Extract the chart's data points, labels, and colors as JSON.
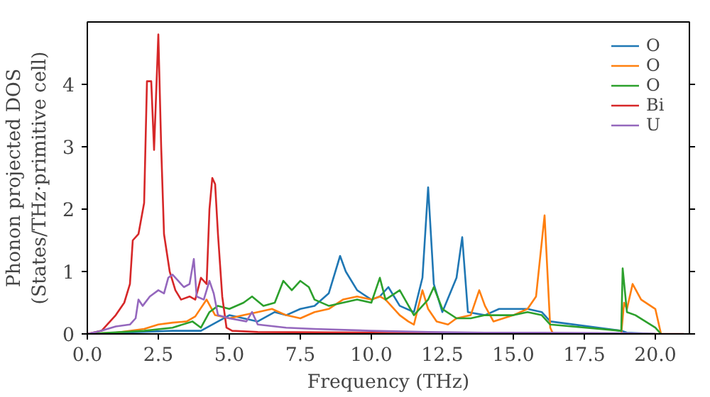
{
  "chart_data": {
    "type": "line",
    "xlabel": "Frequency (THz)",
    "ylabel": "Phonon projected DOS\n(States/THz·primitive cell)",
    "xlim": [
      0,
      21.2
    ],
    "ylim": [
      0,
      5
    ],
    "xticks": [
      {
        "value": 0,
        "label": "0.0"
      },
      {
        "value": 2.5,
        "label": "2.5"
      },
      {
        "value": 5,
        "label": "5.0"
      },
      {
        "value": 7.5,
        "label": "7.5"
      },
      {
        "value": 10,
        "label": "10.0"
      },
      {
        "value": 12.5,
        "label": "12.5"
      },
      {
        "value": 15,
        "label": "15.0"
      },
      {
        "value": 17.5,
        "label": "17.5"
      },
      {
        "value": 20,
        "label": "20.0"
      }
    ],
    "yticks": [
      0,
      1,
      2,
      3,
      4
    ],
    "grid": false,
    "legend": "top right",
    "marker": "none",
    "line_style": "solid",
    "series": [
      {
        "name": "O",
        "color": "#1f77b4",
        "x": [
          0,
          3,
          4,
          5,
          5.5,
          6,
          6.6,
          7,
          7.5,
          8,
          8.5,
          8.9,
          9.1,
          9.5,
          10,
          10.3,
          10.6,
          11,
          11.5,
          11.8,
          12,
          12.2,
          12.5,
          13,
          13.2,
          13.4,
          14,
          14.5,
          15.5,
          16,
          16.3,
          18.8,
          19,
          20
        ],
        "values": [
          0,
          0.05,
          0.05,
          0.3,
          0.25,
          0.2,
          0.35,
          0.3,
          0.4,
          0.45,
          0.65,
          1.25,
          1.0,
          0.7,
          0.55,
          0.6,
          0.75,
          0.45,
          0.35,
          0.9,
          2.35,
          0.8,
          0.35,
          0.9,
          1.55,
          0.35,
          0.3,
          0.4,
          0.4,
          0.35,
          0.2,
          0.05,
          0.02,
          0
        ]
      },
      {
        "name": "O",
        "color": "#ff7f0e",
        "x": [
          0,
          1,
          2,
          2.5,
          3,
          3.5,
          3.8,
          4.2,
          4.5,
          5,
          5.5,
          6,
          6.5,
          7,
          7.5,
          8,
          8.5,
          9,
          9.5,
          10,
          10.3,
          10.5,
          11,
          11.3,
          11.5,
          11.8,
          12,
          12.3,
          12.7,
          13,
          13.5,
          13.8,
          14,
          14.3,
          15,
          15.5,
          15.8,
          16.1,
          16.3,
          16.4,
          18.8,
          18.9,
          19.0,
          19.2,
          19.5,
          20,
          20.2
        ],
        "values": [
          0,
          0.02,
          0.08,
          0.15,
          0.18,
          0.2,
          0.28,
          0.55,
          0.3,
          0.25,
          0.3,
          0.35,
          0.4,
          0.3,
          0.25,
          0.35,
          0.4,
          0.55,
          0.6,
          0.55,
          0.6,
          0.55,
          0.3,
          0.2,
          0.15,
          0.7,
          0.4,
          0.2,
          0.15,
          0.25,
          0.3,
          0.7,
          0.45,
          0.2,
          0.3,
          0.4,
          0.6,
          1.9,
          0.1,
          0,
          0,
          0.5,
          0.4,
          0.8,
          0.55,
          0.4,
          0
        ]
      },
      {
        "name": "O",
        "color": "#2ca02c",
        "x": [
          0,
          2,
          3,
          3.7,
          4,
          4.3,
          4.6,
          5,
          5.5,
          5.8,
          6.2,
          6.6,
          6.9,
          7.2,
          7.5,
          7.8,
          8,
          8.5,
          9,
          9.5,
          10,
          10.3,
          10.5,
          11,
          11.5,
          12,
          12.2,
          12.5,
          13,
          13.5,
          14,
          15,
          15.5,
          16,
          16.3,
          18.8,
          18.85,
          19,
          19.3,
          20,
          20.2
        ],
        "values": [
          0,
          0.05,
          0.1,
          0.2,
          0.1,
          0.35,
          0.45,
          0.4,
          0.5,
          0.6,
          0.45,
          0.5,
          0.85,
          0.7,
          0.85,
          0.75,
          0.55,
          0.45,
          0.5,
          0.55,
          0.5,
          0.9,
          0.55,
          0.7,
          0.3,
          0.55,
          0.75,
          0.4,
          0.25,
          0.25,
          0.3,
          0.3,
          0.35,
          0.3,
          0.15,
          0.05,
          1.05,
          0.35,
          0.3,
          0.1,
          0
        ]
      },
      {
        "name": "Bi",
        "color": "#d62728",
        "x": [
          0,
          0.5,
          1.0,
          1.3,
          1.5,
          1.6,
          1.8,
          2.0,
          2.1,
          2.25,
          2.35,
          2.5,
          2.6,
          2.7,
          2.9,
          3.1,
          3.3,
          3.6,
          3.8,
          4.0,
          4.2,
          4.3,
          4.4,
          4.5,
          4.6,
          4.75,
          4.9,
          5.1,
          6,
          10,
          12,
          13,
          21
        ],
        "values": [
          0,
          0.05,
          0.3,
          0.5,
          0.8,
          1.5,
          1.6,
          2.1,
          4.05,
          4.05,
          2.95,
          4.8,
          3.0,
          1.6,
          1.0,
          0.7,
          0.55,
          0.6,
          0.55,
          0.9,
          0.8,
          2.0,
          2.5,
          2.4,
          1.6,
          0.6,
          0.1,
          0.05,
          0.03,
          0.02,
          0.01,
          0,
          0
        ]
      },
      {
        "name": "U",
        "color": "#9467bd",
        "x": [
          0,
          0.5,
          1,
          1.5,
          1.7,
          1.8,
          1.95,
          2.2,
          2.5,
          2.7,
          2.85,
          3.0,
          3.2,
          3.4,
          3.6,
          3.75,
          3.85,
          4.1,
          4.3,
          4.45,
          4.6,
          5,
          5.6,
          5.8,
          6,
          7,
          8,
          10,
          12,
          14,
          16,
          19,
          20
        ],
        "values": [
          0,
          0.05,
          0.12,
          0.15,
          0.25,
          0.55,
          0.45,
          0.6,
          0.7,
          0.65,
          0.9,
          0.95,
          0.85,
          0.75,
          0.8,
          1.2,
          0.6,
          0.55,
          0.85,
          0.65,
          0.3,
          0.25,
          0.2,
          0.35,
          0.15,
          0.1,
          0.08,
          0.05,
          0.03,
          0.02,
          0.02,
          0.01,
          0
        ]
      }
    ]
  }
}
